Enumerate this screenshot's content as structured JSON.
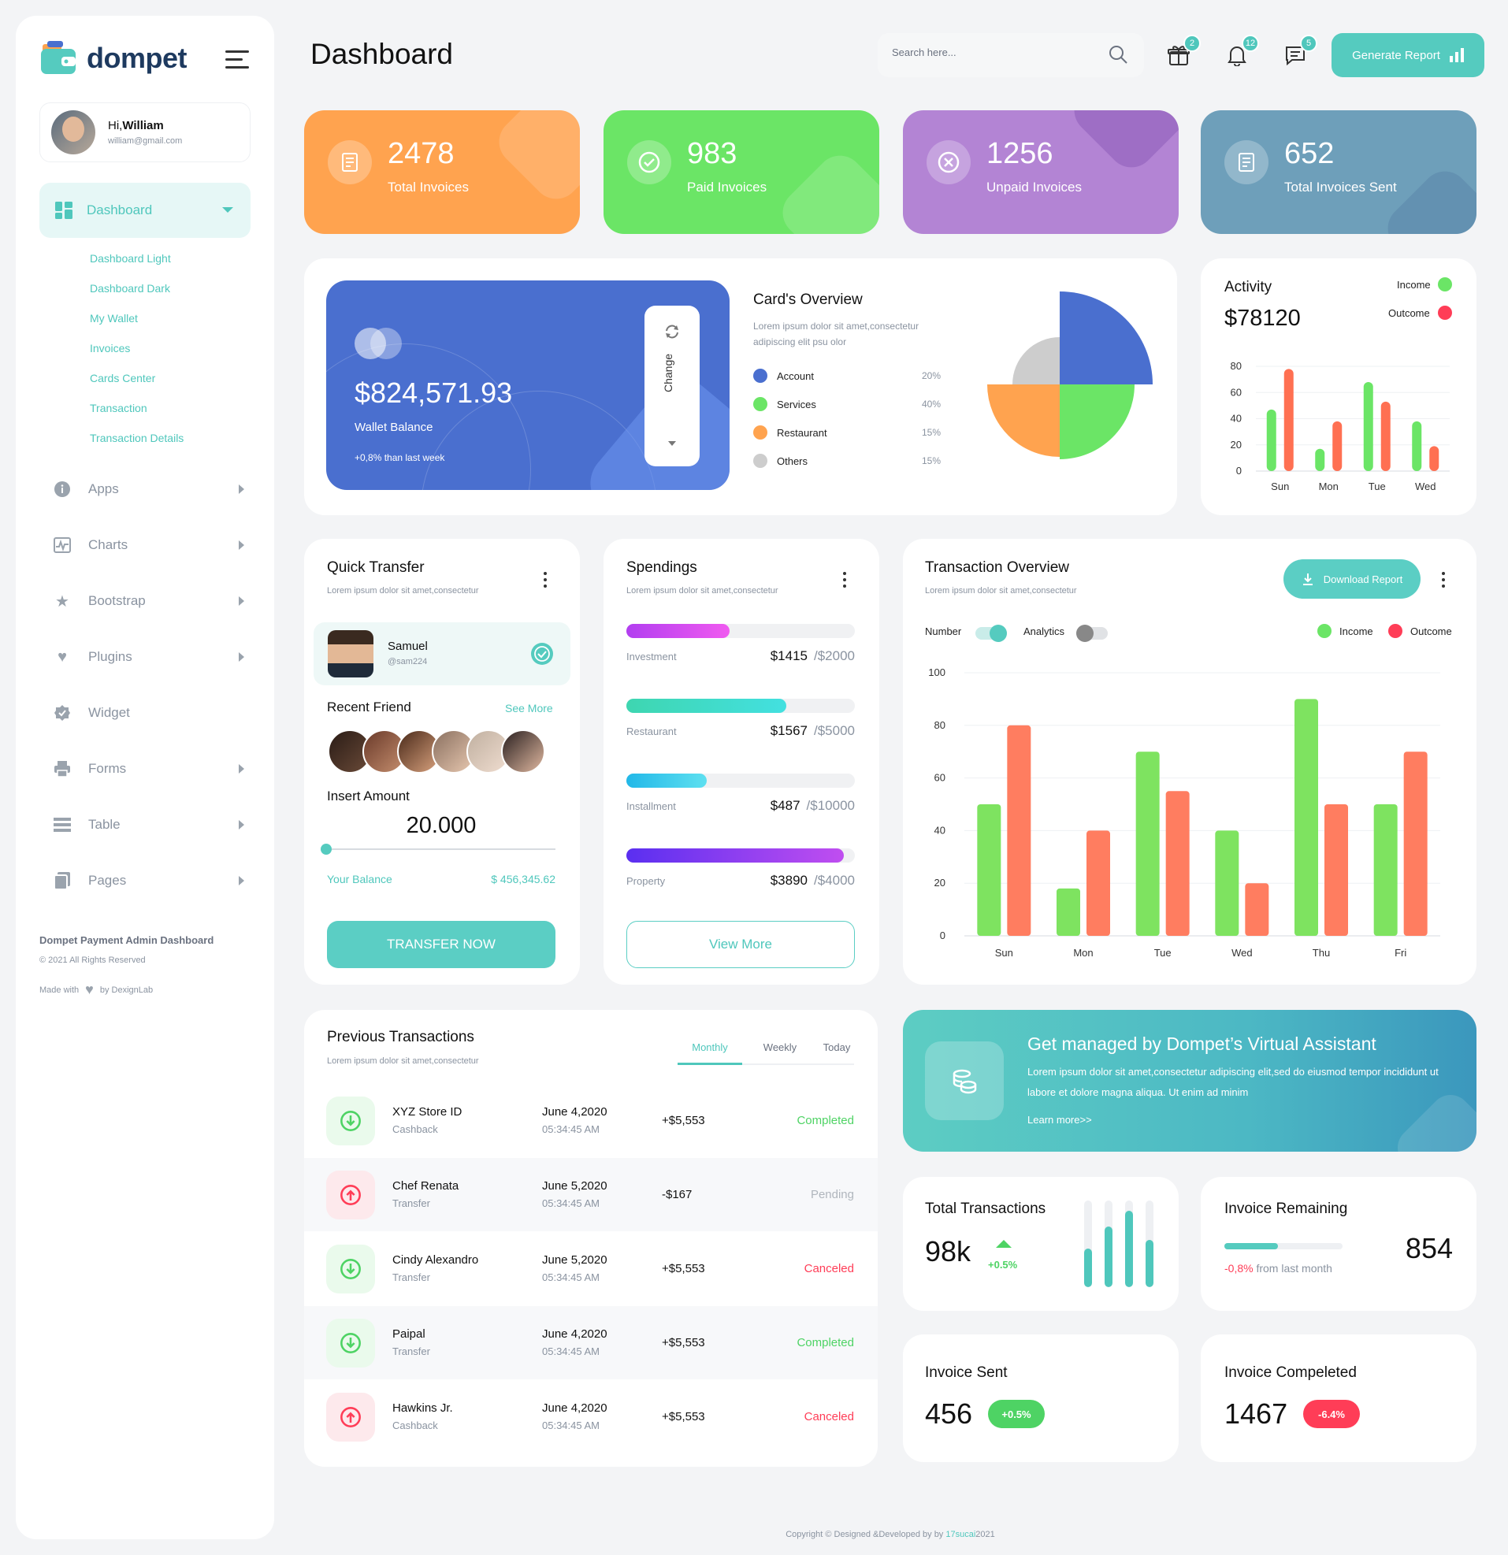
{
  "brand": {
    "name": "dompet"
  },
  "user": {
    "greeting": "Hi,",
    "name": "William",
    "email": "william@gmail.com"
  },
  "nav": {
    "active": "Dashboard",
    "submenu": [
      "Dashboard Light",
      "Dashboard Dark",
      "My Wallet",
      "Invoices",
      "Cards Center",
      "Transaction",
      "Transaction Details"
    ],
    "items": [
      "Apps",
      "Charts",
      "Bootstrap",
      "Plugins",
      "Widget",
      "Forms",
      "Table",
      "Pages"
    ]
  },
  "sidebar_footer": {
    "title": "Dompet Payment Admin Dashboard",
    "rights": "© 2021 All Rights Reserved",
    "made_with": "Made with",
    "by": "by DexignLab"
  },
  "header": {
    "title": "Dashboard",
    "search_placeholder": "Search here...",
    "badges": {
      "gift": "2",
      "bell": "12",
      "chat": "5"
    },
    "generate_label": "Generate Report"
  },
  "stats": [
    {
      "value": "2478",
      "label": "Total Invoices",
      "color": "#ffa34f"
    },
    {
      "value": "983",
      "label": "Paid Invoices",
      "color": "#6be566"
    },
    {
      "value": "1256",
      "label": "Unpaid Invoices",
      "color": "#b384d4"
    },
    {
      "value": "652",
      "label": "Total Invoices Sent",
      "color": "#6e9fba"
    }
  ],
  "wallet": {
    "balance": "$824,571.93",
    "label": "Wallet Balance",
    "delta": "+0,8% than last week",
    "change_label": "Change"
  },
  "cards_overview": {
    "title": "Card's Overview",
    "desc": "Lorem ipsum dolor sit amet,consectetur adipiscing elit psu olor",
    "legend": [
      {
        "name": "Account",
        "pct": "20%",
        "color": "#4a6fcf"
      },
      {
        "name": "Services",
        "pct": "40%",
        "color": "#6be566"
      },
      {
        "name": "Restaurant",
        "pct": "15%",
        "color": "#ffa34f"
      },
      {
        "name": "Others",
        "pct": "15%",
        "color": "#cdcdcd"
      }
    ]
  },
  "activity": {
    "title": "Activity",
    "amount": "$78120",
    "income_label": "Income",
    "outcome_label": "Outcome",
    "chart_data": {
      "type": "bar",
      "categories": [
        "Sun",
        "Mon",
        "Tue",
        "Wed"
      ],
      "series": [
        {
          "name": "Income",
          "color": "#6be566",
          "values": [
            47,
            17,
            68,
            38
          ]
        },
        {
          "name": "Outcome",
          "color": "#ff7052",
          "values": [
            78,
            38,
            53,
            19
          ]
        }
      ],
      "yticks": [
        0,
        20,
        40,
        60,
        80
      ],
      "ylim": [
        0,
        80
      ]
    }
  },
  "quick_transfer": {
    "title": "Quick Transfer",
    "desc": "Lorem ipsum dolor sit amet,consectetur",
    "contact": {
      "name": "Samuel",
      "handle": "@sam224"
    },
    "recent_label": "Recent Friend",
    "see_more": "See More",
    "insert_label": "Insert Amount",
    "amount": "20.000",
    "balance_label": "Your Balance",
    "balance_value": "$ 456,345.62",
    "button": "TRANSFER NOW"
  },
  "spendings": {
    "title": "Spendings",
    "desc": "Lorem ipsum dolor sit amet,consectetur",
    "items": [
      {
        "name": "Investment",
        "amount": "$1415",
        "total": "/$2000",
        "progress": 0.45,
        "from": "#b23ef0",
        "to": "#f05af0"
      },
      {
        "name": "Restaurant",
        "amount": "$1567",
        "total": "/$5000",
        "progress": 0.7,
        "from": "#3ed6b0",
        "to": "#43e0e0"
      },
      {
        "name": "Installment",
        "amount": "$487",
        "total": "/$10000",
        "progress": 0.35,
        "from": "#22b8e8",
        "to": "#5ee0f0"
      },
      {
        "name": "Property",
        "amount": "$3890",
        "total": "/$4000",
        "progress": 0.95,
        "from": "#5a2ff0",
        "to": "#c04ef0"
      }
    ],
    "view_more": "View More"
  },
  "tx_overview": {
    "title": "Transaction Overview",
    "desc": "Lorem ipsum dolor sit amet,consectetur",
    "download_label": "Download Report",
    "toggles": [
      {
        "label": "Number",
        "on": true
      },
      {
        "label": "Analytics",
        "on": false
      }
    ],
    "legend": [
      "Income",
      "Outcome"
    ],
    "chart_data": {
      "type": "bar",
      "categories": [
        "Sun",
        "Mon",
        "Tue",
        "Wed",
        "Thu",
        "Fri"
      ],
      "series": [
        {
          "name": "Income",
          "color": "#7ee360",
          "values": [
            50,
            18,
            70,
            40,
            90,
            50
          ]
        },
        {
          "name": "Outcome",
          "color": "#ff7d60",
          "values": [
            80,
            40,
            55,
            20,
            50,
            70
          ]
        }
      ],
      "yticks": [
        0,
        20,
        40,
        60,
        80,
        100
      ],
      "ylim": [
        0,
        100
      ]
    }
  },
  "prev_tx": {
    "title": "Previous Transactions",
    "desc": "Lorem ipsum dolor sit amet,consectetur",
    "tabs": [
      "Monthly",
      "Weekly",
      "Today"
    ],
    "rows": [
      {
        "name": "XYZ Store ID",
        "type": "Cashback",
        "date": "June 4,2020",
        "time": "05:34:45 AM",
        "amount": "+$5,553",
        "status": "Completed",
        "dir": "in"
      },
      {
        "name": "Chef Renata",
        "type": "Transfer",
        "date": "June 5,2020",
        "time": "05:34:45 AM",
        "amount": "-$167",
        "status": "Pending",
        "dir": "out"
      },
      {
        "name": "Cindy Alexandro",
        "type": "Transfer",
        "date": "June 5,2020",
        "time": "05:34:45 AM",
        "amount": "+$5,553",
        "status": "Canceled",
        "dir": "in"
      },
      {
        "name": "Paipal",
        "type": "Transfer",
        "date": "June 4,2020",
        "time": "05:34:45 AM",
        "amount": "+$5,553",
        "status": "Completed",
        "dir": "in"
      },
      {
        "name": "Hawkins Jr.",
        "type": "Cashback",
        "date": "June 4,2020",
        "time": "05:34:45 AM",
        "amount": "+$5,553",
        "status": "Canceled",
        "dir": "out"
      }
    ]
  },
  "assistant": {
    "title": "Get managed by Dompet’s Virtual Assistant",
    "desc": "Lorem ipsum dolor sit amet,consectetur adipiscing elit,sed do eiusmod tempor incididunt ut labore et dolore magna aliqua. Ut enim ad minim",
    "link": "Learn more>>"
  },
  "total_tx": {
    "title": "Total Transactions",
    "value": "98k",
    "delta": "+0.5%",
    "bars": [
      0.45,
      0.7,
      0.88,
      0.55
    ]
  },
  "invoice_remaining": {
    "title": "Invoice Remaining",
    "value": "854",
    "delta": "-0,8%",
    "delta_suffix": " from last month",
    "progress": 0.45
  },
  "invoice_sent": {
    "title": "Invoice Sent",
    "value": "456",
    "delta": "+0.5%"
  },
  "invoice_completed": {
    "title": "Invoice Compeleted",
    "value": "1467",
    "delta": "-6.4%"
  },
  "footer": {
    "text": "Copyright © Designed &Developed by by ",
    "highlight": "17sucai",
    "year": "2021"
  }
}
